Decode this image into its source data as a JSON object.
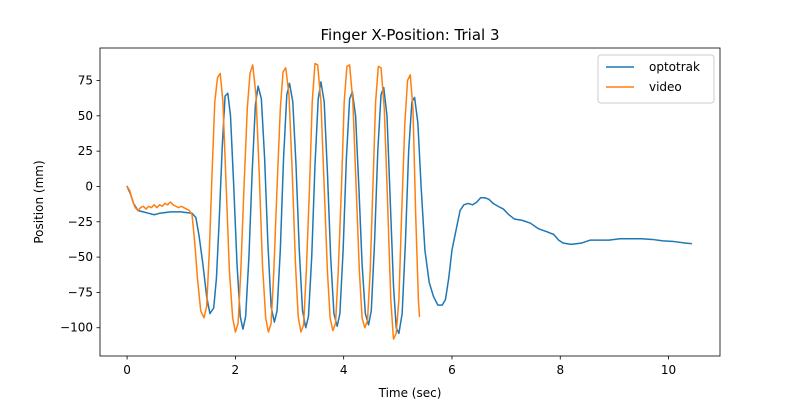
{
  "chart_data": {
    "type": "line",
    "title": "Finger X-Position: Trial 3",
    "xlabel": "Time (sec)",
    "ylabel": "Position (mm)",
    "xlim": [
      -0.5,
      10.95
    ],
    "ylim": [
      -120,
      98
    ],
    "xticks": [
      0,
      2,
      4,
      6,
      8,
      10
    ],
    "yticks": [
      -100,
      -75,
      -50,
      -25,
      0,
      25,
      50,
      75
    ],
    "grid": false,
    "legend_position": "top-right",
    "series": [
      {
        "name": "optotrak",
        "color": "#1f77b4",
        "points": [
          [
            0,
            0
          ],
          [
            0.06,
            -5
          ],
          [
            0.12,
            -12
          ],
          [
            0.2,
            -17
          ],
          [
            0.3,
            -18
          ],
          [
            0.4,
            -19
          ],
          [
            0.5,
            -20
          ],
          [
            0.6,
            -19
          ],
          [
            0.7,
            -18.5
          ],
          [
            0.8,
            -18
          ],
          [
            0.9,
            -18
          ],
          [
            1.0,
            -18
          ],
          [
            1.1,
            -18.5
          ],
          [
            1.2,
            -19
          ],
          [
            1.27,
            -22
          ],
          [
            1.33,
            -35
          ],
          [
            1.4,
            -55
          ],
          [
            1.47,
            -78
          ],
          [
            1.53,
            -90
          ],
          [
            1.6,
            -86
          ],
          [
            1.65,
            -65
          ],
          [
            1.7,
            -25
          ],
          [
            1.76,
            30
          ],
          [
            1.81,
            64
          ],
          [
            1.86,
            66
          ],
          [
            1.91,
            50
          ],
          [
            1.97,
            0
          ],
          [
            2.03,
            -55
          ],
          [
            2.09,
            -92
          ],
          [
            2.14,
            -101
          ],
          [
            2.19,
            -92
          ],
          [
            2.25,
            -50
          ],
          [
            2.31,
            10
          ],
          [
            2.37,
            58
          ],
          [
            2.42,
            71
          ],
          [
            2.48,
            62
          ],
          [
            2.54,
            20
          ],
          [
            2.6,
            -40
          ],
          [
            2.66,
            -85
          ],
          [
            2.72,
            -96
          ],
          [
            2.77,
            -88
          ],
          [
            2.83,
            -45
          ],
          [
            2.89,
            20
          ],
          [
            2.95,
            65
          ],
          [
            3.0,
            73
          ],
          [
            3.06,
            60
          ],
          [
            3.12,
            15
          ],
          [
            3.18,
            -45
          ],
          [
            3.24,
            -88
          ],
          [
            3.3,
            -100
          ],
          [
            3.35,
            -92
          ],
          [
            3.41,
            -50
          ],
          [
            3.47,
            15
          ],
          [
            3.53,
            62
          ],
          [
            3.58,
            74
          ],
          [
            3.64,
            60
          ],
          [
            3.7,
            10
          ],
          [
            3.76,
            -50
          ],
          [
            3.82,
            -90
          ],
          [
            3.88,
            -99
          ],
          [
            3.93,
            -90
          ],
          [
            3.99,
            -45
          ],
          [
            4.05,
            20
          ],
          [
            4.11,
            62
          ],
          [
            4.16,
            67
          ],
          [
            4.22,
            50
          ],
          [
            4.28,
            0
          ],
          [
            4.34,
            -55
          ],
          [
            4.4,
            -90
          ],
          [
            4.46,
            -98
          ],
          [
            4.51,
            -88
          ],
          [
            4.57,
            -40
          ],
          [
            4.63,
            25
          ],
          [
            4.69,
            65
          ],
          [
            4.74,
            70
          ],
          [
            4.8,
            50
          ],
          [
            4.86,
            -10
          ],
          [
            4.92,
            -70
          ],
          [
            4.97,
            -100
          ],
          [
            5.02,
            -104
          ],
          [
            5.08,
            -90
          ],
          [
            5.14,
            -40
          ],
          [
            5.2,
            25
          ],
          [
            5.26,
            60
          ],
          [
            5.31,
            63
          ],
          [
            5.37,
            45
          ],
          [
            5.43,
            0
          ],
          [
            5.5,
            -45
          ],
          [
            5.58,
            -68
          ],
          [
            5.66,
            -78
          ],
          [
            5.74,
            -84
          ],
          [
            5.82,
            -84
          ],
          [
            5.88,
            -80
          ],
          [
            5.94,
            -65
          ],
          [
            6.0,
            -45
          ],
          [
            6.08,
            -30
          ],
          [
            6.15,
            -17
          ],
          [
            6.22,
            -13
          ],
          [
            6.3,
            -12
          ],
          [
            6.38,
            -13
          ],
          [
            6.46,
            -11
          ],
          [
            6.53,
            -8
          ],
          [
            6.6,
            -8
          ],
          [
            6.68,
            -9
          ],
          [
            6.76,
            -12
          ],
          [
            6.85,
            -14
          ],
          [
            6.95,
            -16
          ],
          [
            7.05,
            -20
          ],
          [
            7.15,
            -23
          ],
          [
            7.3,
            -24
          ],
          [
            7.45,
            -26
          ],
          [
            7.6,
            -30
          ],
          [
            7.75,
            -32
          ],
          [
            7.88,
            -34
          ],
          [
            7.97,
            -38
          ],
          [
            8.05,
            -40
          ],
          [
            8.2,
            -41
          ],
          [
            8.4,
            -40
          ],
          [
            8.55,
            -38
          ],
          [
            8.7,
            -38
          ],
          [
            8.9,
            -38
          ],
          [
            9.1,
            -37
          ],
          [
            9.3,
            -37
          ],
          [
            9.5,
            -37
          ],
          [
            9.7,
            -37.5
          ],
          [
            9.9,
            -38.5
          ],
          [
            10.1,
            -39
          ],
          [
            10.3,
            -40
          ],
          [
            10.42,
            -40.5
          ]
        ]
      },
      {
        "name": "video",
        "color": "#ff7f0e",
        "points": [
          [
            0,
            0
          ],
          [
            0.05,
            -3
          ],
          [
            0.1,
            -10
          ],
          [
            0.15,
            -15
          ],
          [
            0.2,
            -17
          ],
          [
            0.25,
            -15
          ],
          [
            0.3,
            -14
          ],
          [
            0.35,
            -16
          ],
          [
            0.4,
            -14
          ],
          [
            0.45,
            -15
          ],
          [
            0.5,
            -13
          ],
          [
            0.55,
            -15
          ],
          [
            0.6,
            -13
          ],
          [
            0.65,
            -14
          ],
          [
            0.7,
            -12
          ],
          [
            0.75,
            -13
          ],
          [
            0.8,
            -11
          ],
          [
            0.85,
            -13
          ],
          [
            0.9,
            -14
          ],
          [
            0.95,
            -15
          ],
          [
            1.0,
            -14
          ],
          [
            1.05,
            -15
          ],
          [
            1.1,
            -16
          ],
          [
            1.15,
            -17
          ],
          [
            1.2,
            -20
          ],
          [
            1.25,
            -40
          ],
          [
            1.3,
            -65
          ],
          [
            1.36,
            -88
          ],
          [
            1.42,
            -93
          ],
          [
            1.47,
            -85
          ],
          [
            1.52,
            -45
          ],
          [
            1.57,
            10
          ],
          [
            1.62,
            60
          ],
          [
            1.67,
            77
          ],
          [
            1.72,
            80
          ],
          [
            1.77,
            60
          ],
          [
            1.83,
            0
          ],
          [
            1.89,
            -60
          ],
          [
            1.95,
            -93
          ],
          [
            2.0,
            -103
          ],
          [
            2.05,
            -97
          ],
          [
            2.1,
            -60
          ],
          [
            2.16,
            0
          ],
          [
            2.22,
            55
          ],
          [
            2.27,
            80
          ],
          [
            2.32,
            86
          ],
          [
            2.38,
            65
          ],
          [
            2.44,
            10
          ],
          [
            2.5,
            -55
          ],
          [
            2.56,
            -93
          ],
          [
            2.61,
            -103
          ],
          [
            2.66,
            -97
          ],
          [
            2.71,
            -60
          ],
          [
            2.77,
            0
          ],
          [
            2.83,
            55
          ],
          [
            2.88,
            81
          ],
          [
            2.93,
            84
          ],
          [
            2.99,
            65
          ],
          [
            3.05,
            10
          ],
          [
            3.11,
            -55
          ],
          [
            3.16,
            -92
          ],
          [
            3.21,
            -103
          ],
          [
            3.26,
            -98
          ],
          [
            3.31,
            -60
          ],
          [
            3.37,
            0
          ],
          [
            3.42,
            60
          ],
          [
            3.47,
            87
          ],
          [
            3.52,
            86
          ],
          [
            3.58,
            60
          ],
          [
            3.64,
            0
          ],
          [
            3.7,
            -60
          ],
          [
            3.75,
            -93
          ],
          [
            3.8,
            -102
          ],
          [
            3.85,
            -97
          ],
          [
            3.9,
            -60
          ],
          [
            3.96,
            0
          ],
          [
            4.01,
            60
          ],
          [
            4.06,
            85
          ],
          [
            4.11,
            86
          ],
          [
            4.17,
            60
          ],
          [
            4.23,
            0
          ],
          [
            4.29,
            -60
          ],
          [
            4.34,
            -93
          ],
          [
            4.39,
            -100
          ],
          [
            4.44,
            -95
          ],
          [
            4.49,
            -60
          ],
          [
            4.54,
            0
          ],
          [
            4.59,
            60
          ],
          [
            4.64,
            85
          ],
          [
            4.69,
            84
          ],
          [
            4.75,
            55
          ],
          [
            4.81,
            -10
          ],
          [
            4.87,
            -80
          ],
          [
            4.92,
            -108
          ],
          [
            4.97,
            -104
          ],
          [
            5.02,
            -80
          ],
          [
            5.07,
            -20
          ],
          [
            5.13,
            45
          ],
          [
            5.18,
            75
          ],
          [
            5.23,
            79
          ],
          [
            5.28,
            55
          ],
          [
            5.33,
            -20
          ],
          [
            5.38,
            -80
          ],
          [
            5.4,
            -92
          ]
        ]
      }
    ]
  }
}
